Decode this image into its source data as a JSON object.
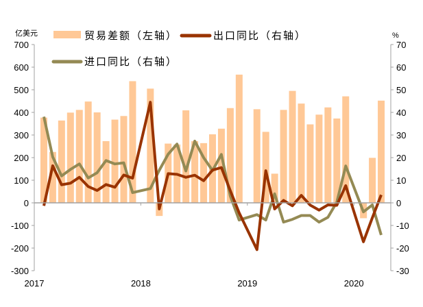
{
  "chart_data": {
    "type": "bar+line",
    "left_unit": "亿美元",
    "right_unit": "%",
    "left_ylim": [
      -300,
      700
    ],
    "right_ylim": [
      -30,
      70
    ],
    "left_ticks": [
      700,
      600,
      500,
      400,
      300,
      200,
      100,
      0,
      -100,
      -200,
      -300
    ],
    "right_ticks": [
      70,
      60,
      50,
      40,
      30,
      20,
      10,
      0,
      -10,
      -20,
      -30
    ],
    "x_ticks": [
      "2017",
      "2018",
      "2019",
      "2020"
    ],
    "legend": {
      "placement": "top"
    },
    "grid": false,
    "colors": {
      "bar": "#FFC896",
      "export": "#993300",
      "import": "#948A54",
      "axis": "#A0A0A0"
    },
    "x": [
      "2017-02",
      "2017-03",
      "2017-04",
      "2017-05",
      "2017-06",
      "2017-07",
      "2017-08",
      "2017-09",
      "2017-10",
      "2017-11",
      "2017-12",
      "2018-02",
      "2018-03",
      "2018-04",
      "2018-05",
      "2018-06",
      "2018-07",
      "2018-08",
      "2018-09",
      "2018-10",
      "2018-11",
      "2018-12",
      "2019-02",
      "2019-03",
      "2019-04",
      "2019-05",
      "2019-06",
      "2019-07",
      "2019-08",
      "2019-09",
      "2019-10",
      "2019-11",
      "2019-12",
      "2020-02",
      "2020-03",
      "2020-04"
    ],
    "series": [
      {
        "name": "贸易差额（左轴）",
        "type": "bar",
        "axis": "left",
        "values": [
          377,
          225,
          364,
          399,
          411,
          448,
          400,
          273,
          368,
          384,
          538,
          505,
          -58,
          262,
          258,
          409,
          273,
          264,
          303,
          328,
          419,
          567,
          414,
          314,
          129,
          411,
          495,
          439,
          347,
          390,
          422,
          373,
          471,
          -68,
          199,
          452
        ]
      },
      {
        "name": "出口同比（右轴）",
        "type": "line",
        "axis": "right",
        "values": [
          -1.3,
          16.4,
          8.0,
          8.7,
          11.3,
          7.2,
          5.5,
          8.1,
          6.9,
          12.3,
          10.9,
          44.5,
          -2.7,
          12.9,
          12.6,
          11.3,
          12.2,
          9.8,
          14.5,
          15.6,
          5.4,
          -4.4,
          -20.7,
          14.2,
          -2.7,
          1.1,
          -1.3,
          3.3,
          -1.0,
          -3.2,
          -0.9,
          -1.1,
          7.6,
          -17.2,
          -6.6,
          3.5
        ]
      },
      {
        "name": "进口同比（右轴）",
        "type": "line",
        "axis": "right",
        "values": [
          38.1,
          20.3,
          11.9,
          14.8,
          17.2,
          11.0,
          13.3,
          18.7,
          17.2,
          17.7,
          4.5,
          6.3,
          14.4,
          21.5,
          26.0,
          14.1,
          27.3,
          20.0,
          14.3,
          21.4,
          3.0,
          -7.6,
          -5.2,
          -7.6,
          4.0,
          -8.5,
          -7.3,
          -5.6,
          -5.6,
          -8.5,
          -6.4,
          0.3,
          16.3,
          -4.0,
          -0.9,
          -14.2
        ]
      }
    ]
  }
}
